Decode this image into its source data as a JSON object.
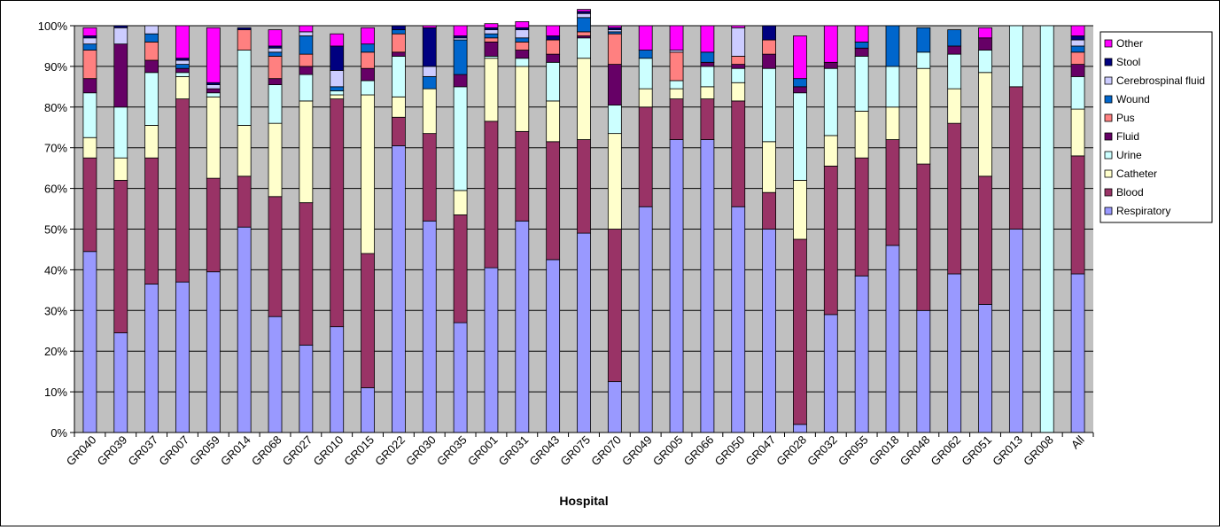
{
  "chart_data": {
    "type": "bar",
    "stacked": true,
    "percent": true,
    "xlabel": "Hospital",
    "ylabel": "",
    "ylim": [
      0,
      100
    ],
    "yticks": [
      "0%",
      "10%",
      "20%",
      "30%",
      "40%",
      "50%",
      "60%",
      "70%",
      "80%",
      "90%",
      "100%"
    ],
    "grid": true,
    "legend_position": "right",
    "categories": [
      "GR040",
      "GR039",
      "GR037",
      "GR007",
      "GR059",
      "GR014",
      "GR068",
      "GR027",
      "GR010",
      "GR015",
      "GR022",
      "GR030",
      "GR035",
      "GR001",
      "GR031",
      "GR043",
      "GR075",
      "GR070",
      "GR049",
      "GR005",
      "GR066",
      "GR050",
      "GR047",
      "GR028",
      "GR032",
      "GR055",
      "GR018",
      "GR048",
      "GR062",
      "GR051",
      "GR013",
      "GR008",
      "All"
    ],
    "series": [
      {
        "name": "Respiratory",
        "color": "#9999ff",
        "values": [
          44.5,
          24.5,
          36.5,
          37,
          39.5,
          50.5,
          28.5,
          21.5,
          26,
          11,
          70.5,
          52,
          27,
          40.5,
          52,
          42.5,
          49,
          12.5,
          55.5,
          72,
          72,
          55.5,
          50,
          2,
          29,
          38.5,
          46,
          30,
          39,
          31.5,
          50,
          0,
          39
        ]
      },
      {
        "name": "Blood",
        "color": "#993366",
        "values": [
          23,
          37.5,
          31,
          45,
          23,
          12.5,
          29.5,
          35,
          56,
          33,
          7,
          21.5,
          26.5,
          36,
          22,
          29,
          23,
          37.5,
          24.5,
          10,
          10,
          26,
          9,
          45.5,
          36.5,
          29,
          26,
          36,
          37,
          31.5,
          35,
          0,
          29
        ]
      },
      {
        "name": "Catheter",
        "color": "#ffffcc",
        "values": [
          5,
          5.5,
          8,
          5.5,
          20,
          12.5,
          18,
          25,
          1,
          39,
          5,
          11,
          6,
          15.5,
          16,
          10,
          20,
          23.5,
          4.5,
          2.5,
          3,
          4.5,
          12.5,
          14.5,
          7.5,
          11.5,
          8,
          23.5,
          8.5,
          25.5,
          0,
          0,
          11.5
        ]
      },
      {
        "name": "Urine",
        "color": "#ccffff",
        "values": [
          11,
          12.5,
          13,
          1,
          1,
          18.5,
          9.5,
          6.5,
          1,
          3.5,
          10,
          0,
          25.5,
          0.5,
          2,
          9.5,
          5,
          7,
          7.5,
          2,
          5,
          3.5,
          18,
          21.5,
          16.5,
          13.5,
          10,
          4,
          8.5,
          5.5,
          15,
          100,
          8
        ]
      },
      {
        "name": "Fluid",
        "color": "#660066",
        "values": [
          3.5,
          15.5,
          3,
          1,
          1,
          0,
          1.5,
          2,
          0,
          3,
          1,
          0,
          3,
          3.5,
          2,
          2,
          0.5,
          10,
          0,
          0,
          1,
          1,
          3.5,
          1.5,
          1.5,
          2,
          0,
          0,
          2,
          3,
          0,
          0,
          3
        ]
      },
      {
        "name": "Pus",
        "color": "#ff8080",
        "values": [
          7,
          0,
          4.5,
          0,
          0,
          5,
          5.5,
          3,
          0,
          4,
          4.5,
          0,
          0,
          1,
          2,
          3.5,
          1,
          7.5,
          0,
          7,
          0,
          2,
          3.5,
          0,
          0,
          0,
          0,
          0,
          0,
          0,
          0,
          0,
          3
        ]
      },
      {
        "name": "Wound",
        "color": "#0066cc",
        "values": [
          1.5,
          0,
          2,
          1,
          0,
          0,
          1,
          4.5,
          1,
          2,
          1,
          3,
          8.5,
          1,
          1,
          0,
          3.5,
          0.5,
          2,
          0,
          2.5,
          0,
          0,
          2,
          0,
          1.5,
          10,
          6,
          4,
          0,
          0,
          0,
          1.5
        ]
      },
      {
        "name": "Cerebrospinal fluid",
        "color": "#ccccff",
        "values": [
          1.5,
          4,
          2,
          1,
          1,
          0,
          1,
          1,
          4,
          0,
          0,
          2.5,
          0.5,
          1,
          2,
          0,
          1,
          0.5,
          0,
          0.5,
          0,
          7,
          0,
          0,
          0,
          0,
          0,
          0,
          0,
          0,
          0,
          0,
          1.5
        ]
      },
      {
        "name": "Stool",
        "color": "#000080",
        "values": [
          0.5,
          0.5,
          0,
          0.5,
          0.5,
          0.5,
          0.5,
          0,
          6,
          0,
          1,
          9.5,
          0.5,
          0.5,
          0.5,
          1,
          0.5,
          0.5,
          0,
          0,
          0,
          0,
          3.5,
          0,
          0,
          0,
          0,
          0,
          0,
          0,
          0,
          0,
          1
        ]
      },
      {
        "name": "Other",
        "color": "#ff00ff",
        "values": [
          2,
          0,
          0,
          8,
          13.5,
          0,
          4,
          1.5,
          3,
          4,
          0,
          0.5,
          2.5,
          1,
          1.5,
          2.5,
          0.5,
          0.5,
          6,
          6,
          6.5,
          0.5,
          0,
          10.5,
          9,
          4,
          0,
          0,
          0,
          2.5,
          0,
          0,
          2.5
        ]
      }
    ]
  }
}
